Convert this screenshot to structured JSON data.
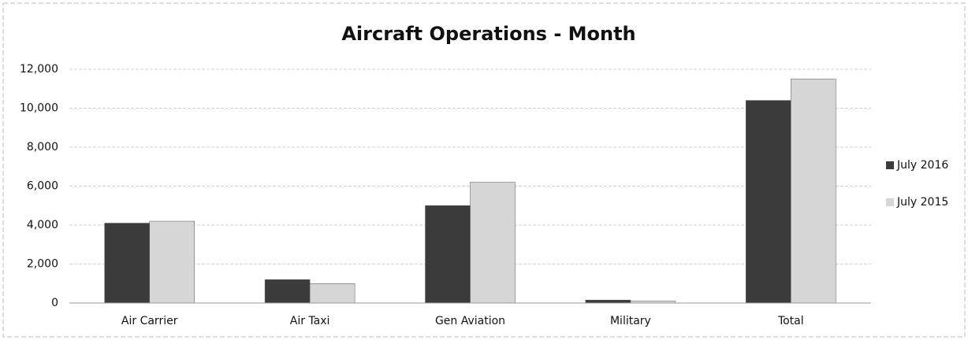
{
  "chart_data": {
    "type": "bar",
    "title": "Aircraft Operations - Month",
    "categories": [
      "Air Carrier",
      "Air Taxi",
      "Gen Aviation",
      "Military",
      "Total"
    ],
    "series": [
      {
        "name": "July 2016",
        "color": "#3b3b3b",
        "values": [
          4100,
          1200,
          5000,
          150,
          10400
        ]
      },
      {
        "name": "July 2015",
        "color": "#d6d6d6",
        "values": [
          4200,
          1000,
          6200,
          100,
          11500
        ]
      }
    ],
    "ylim": [
      0,
      12000
    ],
    "yticks": [
      0,
      {
        "value": 2000,
        "label": "2,000"
      },
      {
        "value": 4000,
        "label": "4,000"
      },
      {
        "value": 6000,
        "label": "6,000"
      },
      {
        "value": 8000,
        "label": "8,000"
      },
      {
        "value": 10000,
        "label": "10,000"
      },
      {
        "value": 12000,
        "label": "12,000"
      }
    ],
    "grid": true,
    "legend": "right"
  }
}
